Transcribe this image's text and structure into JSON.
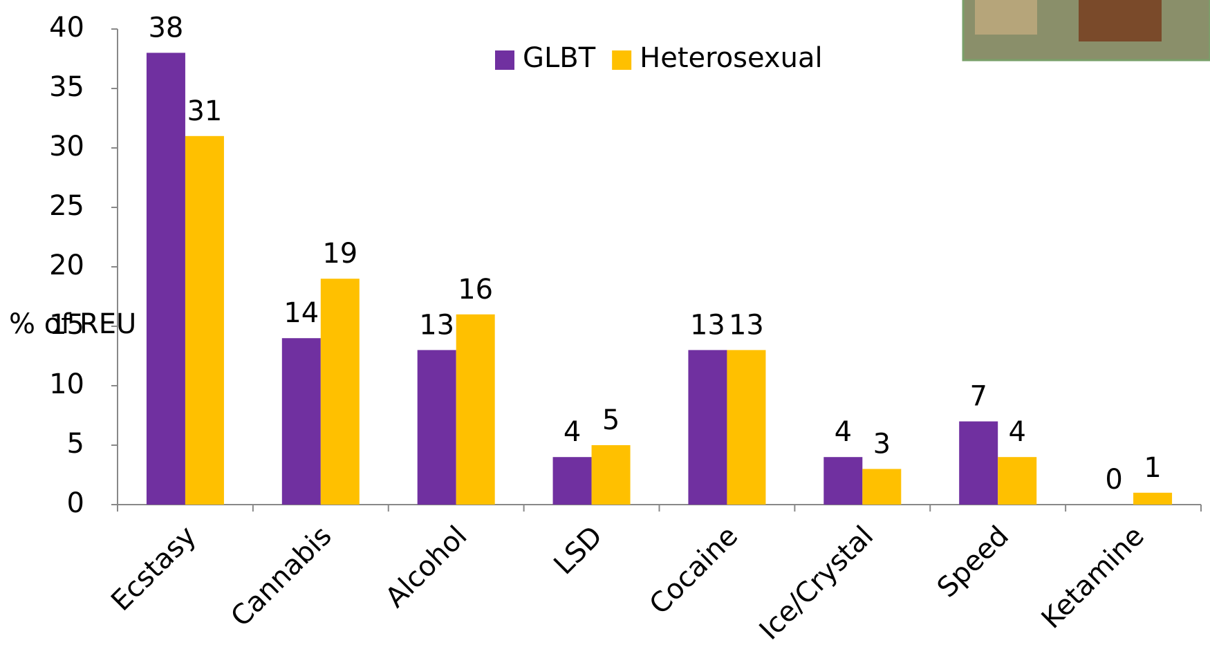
{
  "chart_data": {
    "type": "bar",
    "categories": [
      "Ecstasy",
      "Cannabis",
      "Alcohol",
      "LSD",
      "Cocaine",
      "Ice/Crystal",
      "Speed",
      "Ketamine"
    ],
    "series": [
      {
        "name": "GLBT",
        "color": "#7030a0",
        "values": [
          38,
          14,
          13,
          4,
          13,
          4,
          7,
          0
        ]
      },
      {
        "name": "Heterosexual",
        "color": "#ffc000",
        "values": [
          31,
          19,
          16,
          5,
          13,
          3,
          4,
          1
        ]
      }
    ],
    "ylabel": "% of REU",
    "ylim": [
      0,
      40
    ],
    "yticks": [
      0,
      5,
      10,
      15,
      20,
      25,
      30,
      35,
      40
    ],
    "grid": false,
    "legend": "top"
  }
}
